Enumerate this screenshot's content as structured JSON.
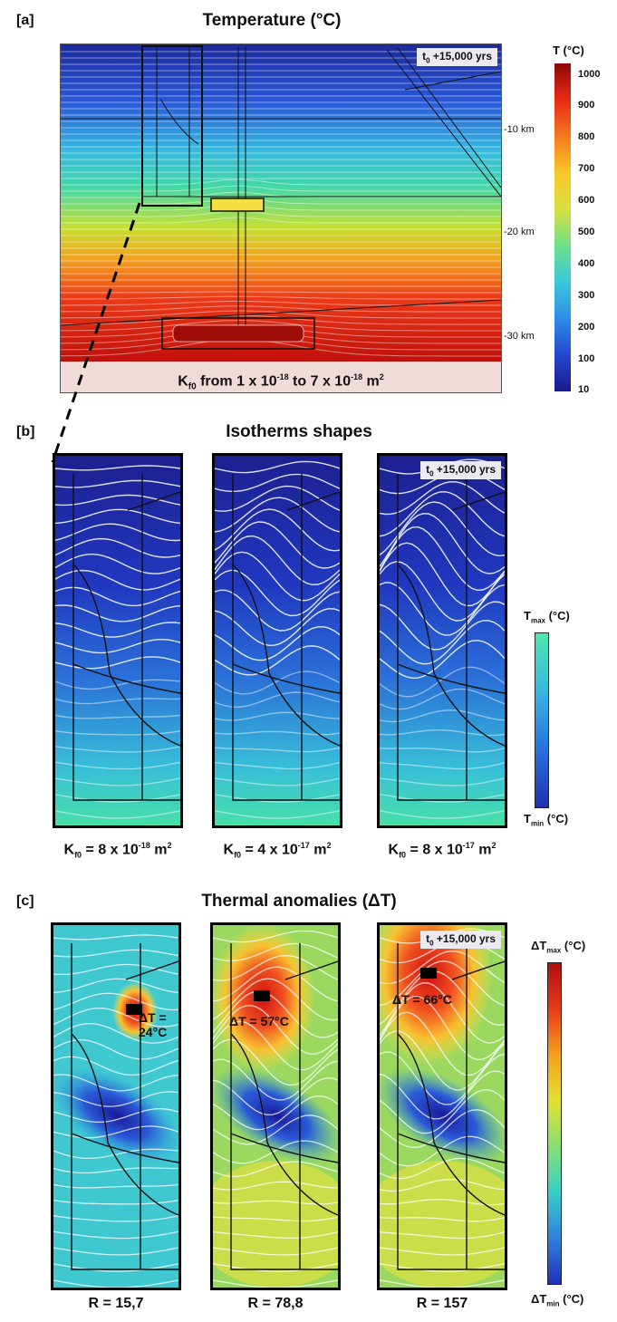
{
  "panel_a": {
    "label": "[a]",
    "title": "Temperature (°C)",
    "badge_t": "t",
    "badge_sub": "0",
    "badge_rest": " +15,000 yrs",
    "depths": [
      "-10 km",
      "-20 km",
      "-30 km"
    ],
    "footer_pre": "K",
    "footer_sub": "f0",
    "footer_mid1": " from 1 x 10",
    "footer_exp1": "-18",
    "footer_mid2": " to 7 x 10",
    "footer_exp2": "-18",
    "footer_unit": " m",
    "footer_unit_exp": "2",
    "colorbar_title": "T (°C)",
    "colorbar_ticks": [
      "1000",
      "900",
      "800",
      "700",
      "600",
      "500",
      "400",
      "300",
      "200",
      "100",
      "10"
    ]
  },
  "panel_b": {
    "label": "[b]",
    "title": "Isotherms shapes",
    "badge_t": "t",
    "badge_sub": "0",
    "badge_rest": " +15,000 yrs",
    "captions": [
      {
        "pre": "K",
        "sub": "f0",
        "mid": " = 8 x 10",
        "exp": "-18",
        "unit": " m",
        "uexp": "2"
      },
      {
        "pre": "K",
        "sub": "f0",
        "mid": " = 4 x 10",
        "exp": "-17",
        "unit": " m",
        "uexp": "2"
      },
      {
        "pre": "K",
        "sub": "f0",
        "mid": " = 8 x 10",
        "exp": "-17",
        "unit": " m",
        "uexp": "2"
      }
    ],
    "colorbar_top_pre": "T",
    "colorbar_top_sub": "max",
    "colorbar_top_unit": " (°C)",
    "colorbar_bot_pre": "T",
    "colorbar_bot_sub": "min",
    "colorbar_bot_unit": " (°C)"
  },
  "panel_c": {
    "label": "[c]",
    "title": "Thermal anomalies (ΔT)",
    "badge_t": "t",
    "badge_sub": "0",
    "badge_rest": " +15,000 yrs",
    "anomalies": [
      "ΔT = 24°C",
      "ΔT = 57°C",
      "ΔT = 66°C"
    ],
    "captions": [
      "R = 15,7",
      "R = 78,8",
      "R = 157"
    ],
    "colorbar_top_pre": "ΔT",
    "colorbar_top_sub": "max",
    "colorbar_top_unit": " (°C)",
    "colorbar_bot_pre": "ΔT",
    "colorbar_bot_sub": "min",
    "colorbar_bot_unit": " (°C)"
  },
  "colors": {
    "cold": "#1a1a9a",
    "warm": "#e0201a",
    "cyan": "#36d0c8",
    "yellow": "#f4e030"
  }
}
